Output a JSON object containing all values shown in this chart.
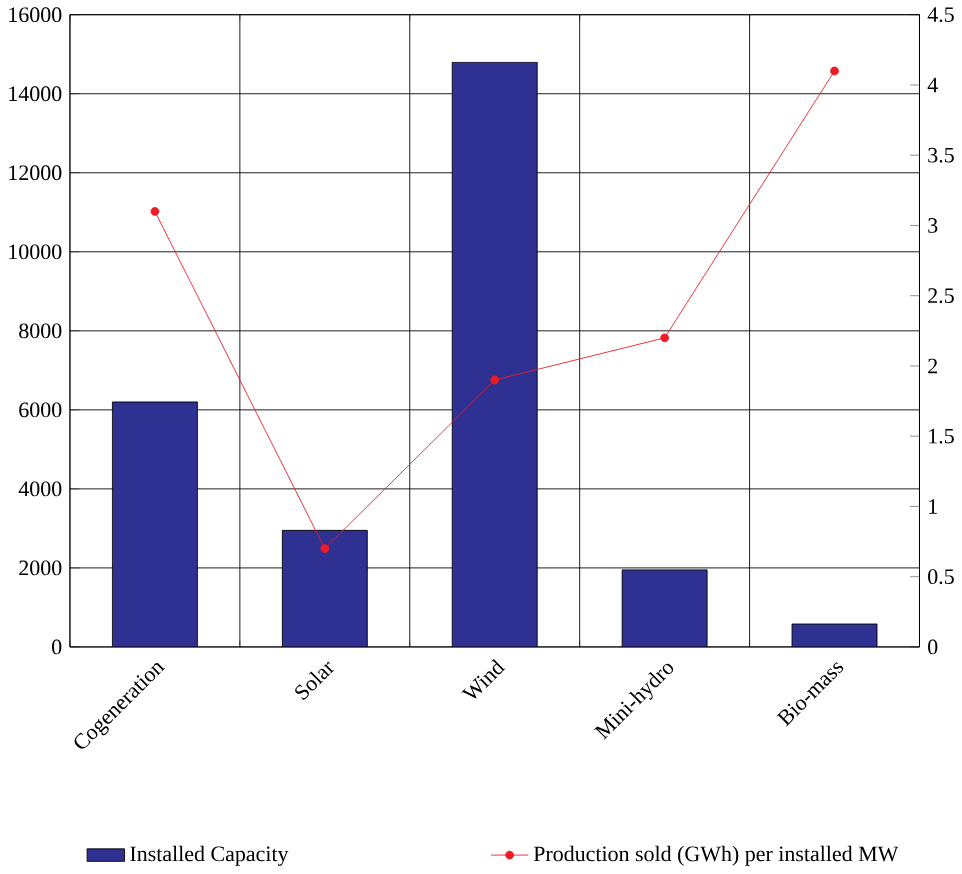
{
  "chart_data": {
    "type": "bar",
    "categories": [
      "Cogeneration",
      "Solar",
      "Wind",
      "Mini-hydro",
      "Bio-mass"
    ],
    "series": [
      {
        "name": "Installed Capacity",
        "color": "#2e3192",
        "values": [
          6200,
          2950,
          14800,
          1950,
          580
        ]
      },
      {
        "name": "Production sold (GWh) per installed MW",
        "color": "#ed1c24",
        "type": "line",
        "axis": "y2",
        "values": [
          3.1,
          0.7,
          1.9,
          2.2,
          4.1
        ]
      }
    ],
    "ylim": [
      0,
      16000
    ],
    "yticks": [
      0,
      2000,
      4000,
      6000,
      8000,
      10000,
      12000,
      14000,
      16000
    ],
    "y2lim": [
      0,
      4.5
    ],
    "y2ticks": [
      0,
      0.5,
      1,
      1.5,
      2,
      2.5,
      3,
      3.5,
      4,
      4.5
    ],
    "grid": true,
    "legend": "bottom",
    "marker": "circle"
  }
}
